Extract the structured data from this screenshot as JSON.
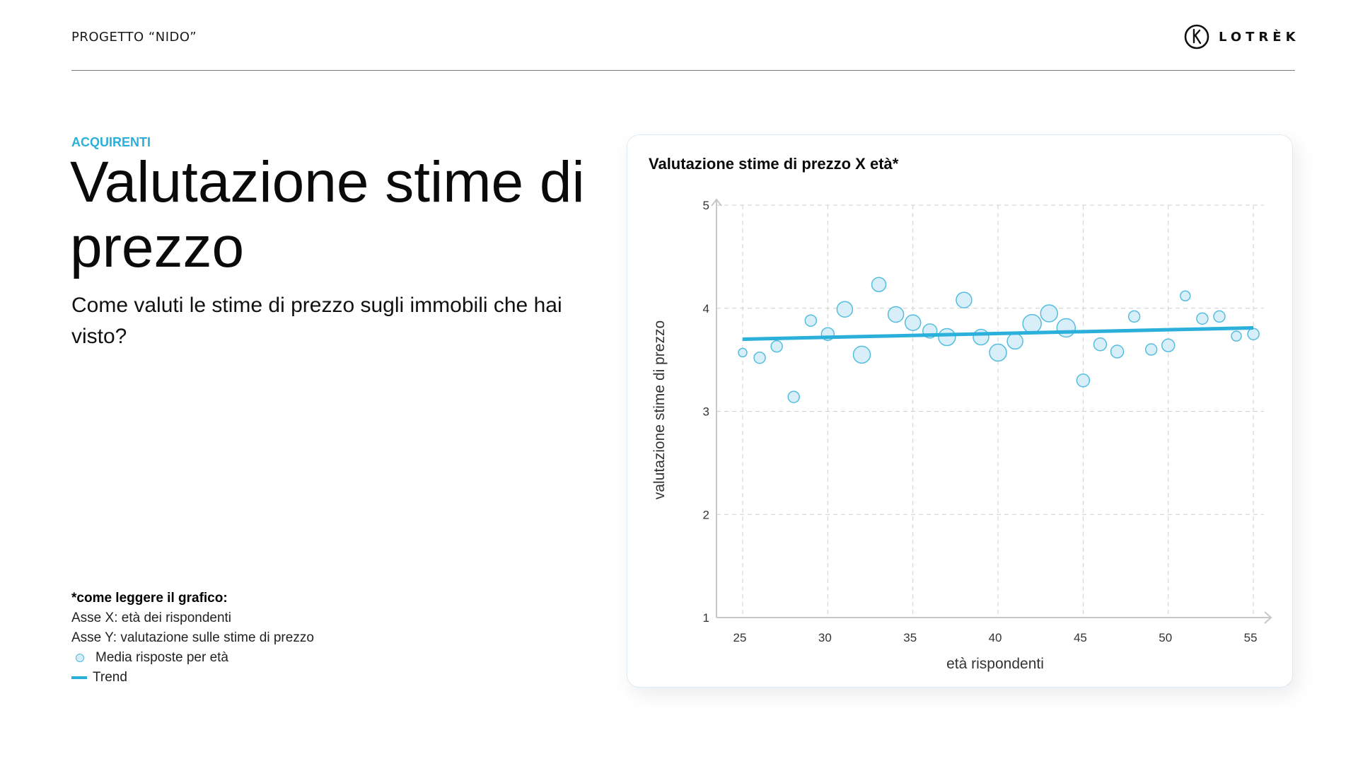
{
  "header": {
    "project_title": "PROGETTO “NIDO”",
    "logo_text": "LOTRÈK",
    "logo_icon": "k-circle-logo-icon"
  },
  "section": {
    "eyebrow": "ACQUIRENTI",
    "title": "Valutazione stime di prezzo",
    "subtitle": "Come valuti le stime di prezzo sugli immobili che hai visto?"
  },
  "legend": {
    "heading": "*come leggere il grafico:",
    "x_axis": "Asse X: età dei rispondenti",
    "y_axis": "Asse Y: valutazione sulle stime di prezzo",
    "points_label": "Media risposte per età",
    "trend_label": "Trend"
  },
  "colors": {
    "accent": "#2ab0da",
    "point_fill": "#d6eef8",
    "point_stroke": "#4bbbdd",
    "grid": "#cfcfcf",
    "axis": "#c8c8c8"
  },
  "chart_data": {
    "type": "scatter",
    "title": "Valutazione stime di prezzo X età*",
    "xlabel": "età rispondenti",
    "ylabel": "valutazione stime di prezzo",
    "xlim": [
      23.5,
      56.5
    ],
    "ylim": [
      1,
      5
    ],
    "xticks": [
      25,
      30,
      35,
      40,
      45,
      50,
      55
    ],
    "yticks": [
      1,
      2,
      3,
      4,
      5
    ],
    "grid": true,
    "series": [
      {
        "name": "Media risposte per età",
        "x": [
          25,
          26,
          27,
          28,
          29,
          30,
          31,
          32,
          33,
          34,
          35,
          36,
          37,
          38,
          39,
          40,
          41,
          42,
          43,
          44,
          45,
          46,
          47,
          48,
          49,
          50,
          51,
          52,
          53,
          54,
          55
        ],
        "y": [
          3.57,
          3.52,
          3.63,
          3.14,
          3.88,
          3.75,
          3.99,
          3.55,
          4.23,
          3.94,
          3.86,
          3.78,
          3.72,
          4.08,
          3.72,
          3.57,
          3.68,
          3.85,
          3.95,
          3.81,
          3.3,
          3.65,
          3.58,
          3.92,
          3.6,
          3.64,
          4.12,
          3.9,
          3.92,
          3.73,
          3.75
        ],
        "size": [
          6,
          8,
          8,
          8,
          8,
          9,
          11,
          12,
          10,
          11,
          11,
          10,
          12,
          11,
          11,
          12,
          11,
          13,
          12,
          13,
          9,
          9,
          9,
          8,
          8,
          9,
          7,
          8,
          8,
          7,
          8
        ]
      },
      {
        "name": "Trend",
        "type": "line",
        "x": [
          25,
          55
        ],
        "y": [
          3.7,
          3.81
        ]
      }
    ]
  }
}
